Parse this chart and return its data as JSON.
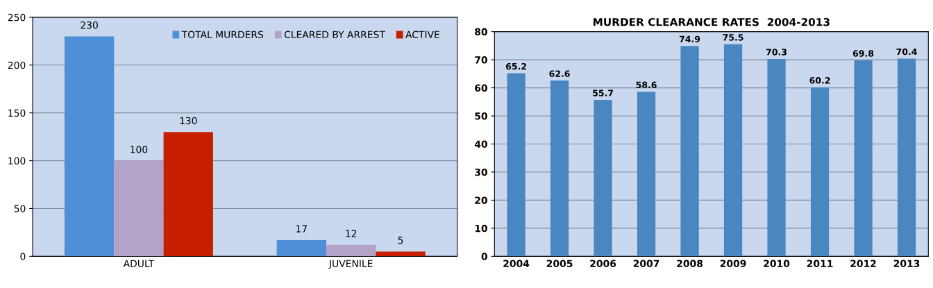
{
  "chart_data": [
    {
      "type": "bar",
      "categories": [
        "ADULT",
        "JUVENILE"
      ],
      "series": [
        {
          "name": "TOTAL MURDERS",
          "color": "#4f8fd8",
          "values": [
            230,
            17
          ]
        },
        {
          "name": "CLEARED BY ARREST",
          "color": "#b4a3c8",
          "values": [
            100,
            12
          ]
        },
        {
          "name": "ACTIVE",
          "color": "#c81e00",
          "values": [
            130,
            5
          ]
        }
      ],
      "ylim": [
        0,
        250
      ],
      "yticks": [
        0,
        50,
        100,
        150,
        200,
        250
      ],
      "grid": "y",
      "legend": "top right",
      "data_labels": true
    },
    {
      "type": "bar",
      "title": "MURDER CLEARANCE RATES  2004-2013",
      "categories": [
        "2004",
        "2005",
        "2006",
        "2007",
        "2008",
        "2009",
        "2010",
        "2011",
        "2012",
        "2013"
      ],
      "values": [
        65.2,
        62.6,
        55.7,
        58.6,
        74.9,
        75.5,
        70.3,
        60.2,
        69.8,
        70.4
      ],
      "color": "#4a86c0",
      "ylim": [
        0,
        80
      ],
      "yticks": [
        0,
        10,
        20,
        30,
        40,
        50,
        60,
        70,
        80
      ],
      "grid": "y",
      "data_labels": true
    }
  ]
}
